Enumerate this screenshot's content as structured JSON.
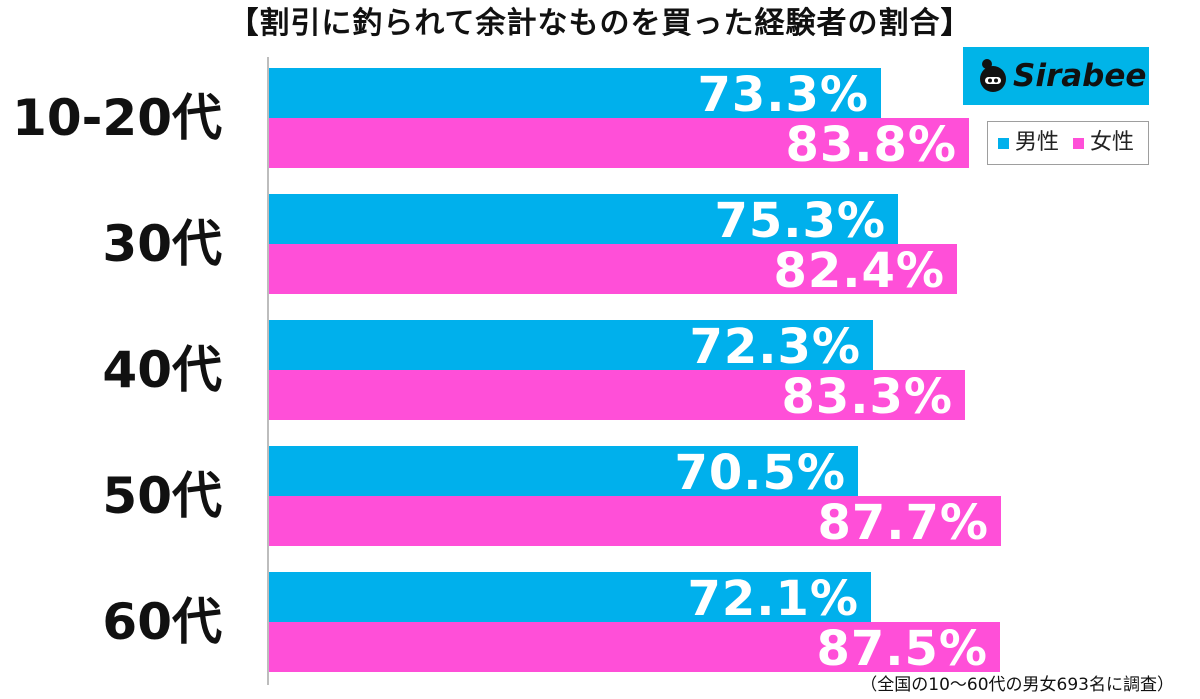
{
  "title": "【割引に釣られて余計なものを買った経験者の割合】",
  "logo": {
    "text": "Sirabee",
    "icon": "sirabee-logo-icon"
  },
  "legend": {
    "male": "男性",
    "female": "女性"
  },
  "colors": {
    "male": "#00b0ec",
    "female": "#ff4fd8",
    "axis": "#bdbdbd"
  },
  "footnote": "（全国の10〜60代の男女693名に調査）",
  "chart_data": {
    "type": "bar",
    "orientation": "horizontal",
    "title": "【割引に釣られて余計なものを買った経験者の割合】",
    "categories": [
      "10-20代",
      "30代",
      "40代",
      "50代",
      "60代"
    ],
    "series": [
      {
        "name": "男性",
        "values": [
          73.3,
          75.3,
          72.3,
          70.5,
          72.1
        ],
        "labels": [
          "73.3%",
          "75.3%",
          "72.3%",
          "70.5%",
          "72.1%"
        ]
      },
      {
        "name": "女性",
        "values": [
          83.8,
          82.4,
          83.3,
          87.7,
          87.5
        ],
        "labels": [
          "83.8%",
          "82.4%",
          "83.3%",
          "87.7%",
          "87.5%"
        ]
      }
    ],
    "xlim": [
      0,
      100
    ],
    "unit": "%",
    "grid": false,
    "legend_position": "top-right"
  }
}
